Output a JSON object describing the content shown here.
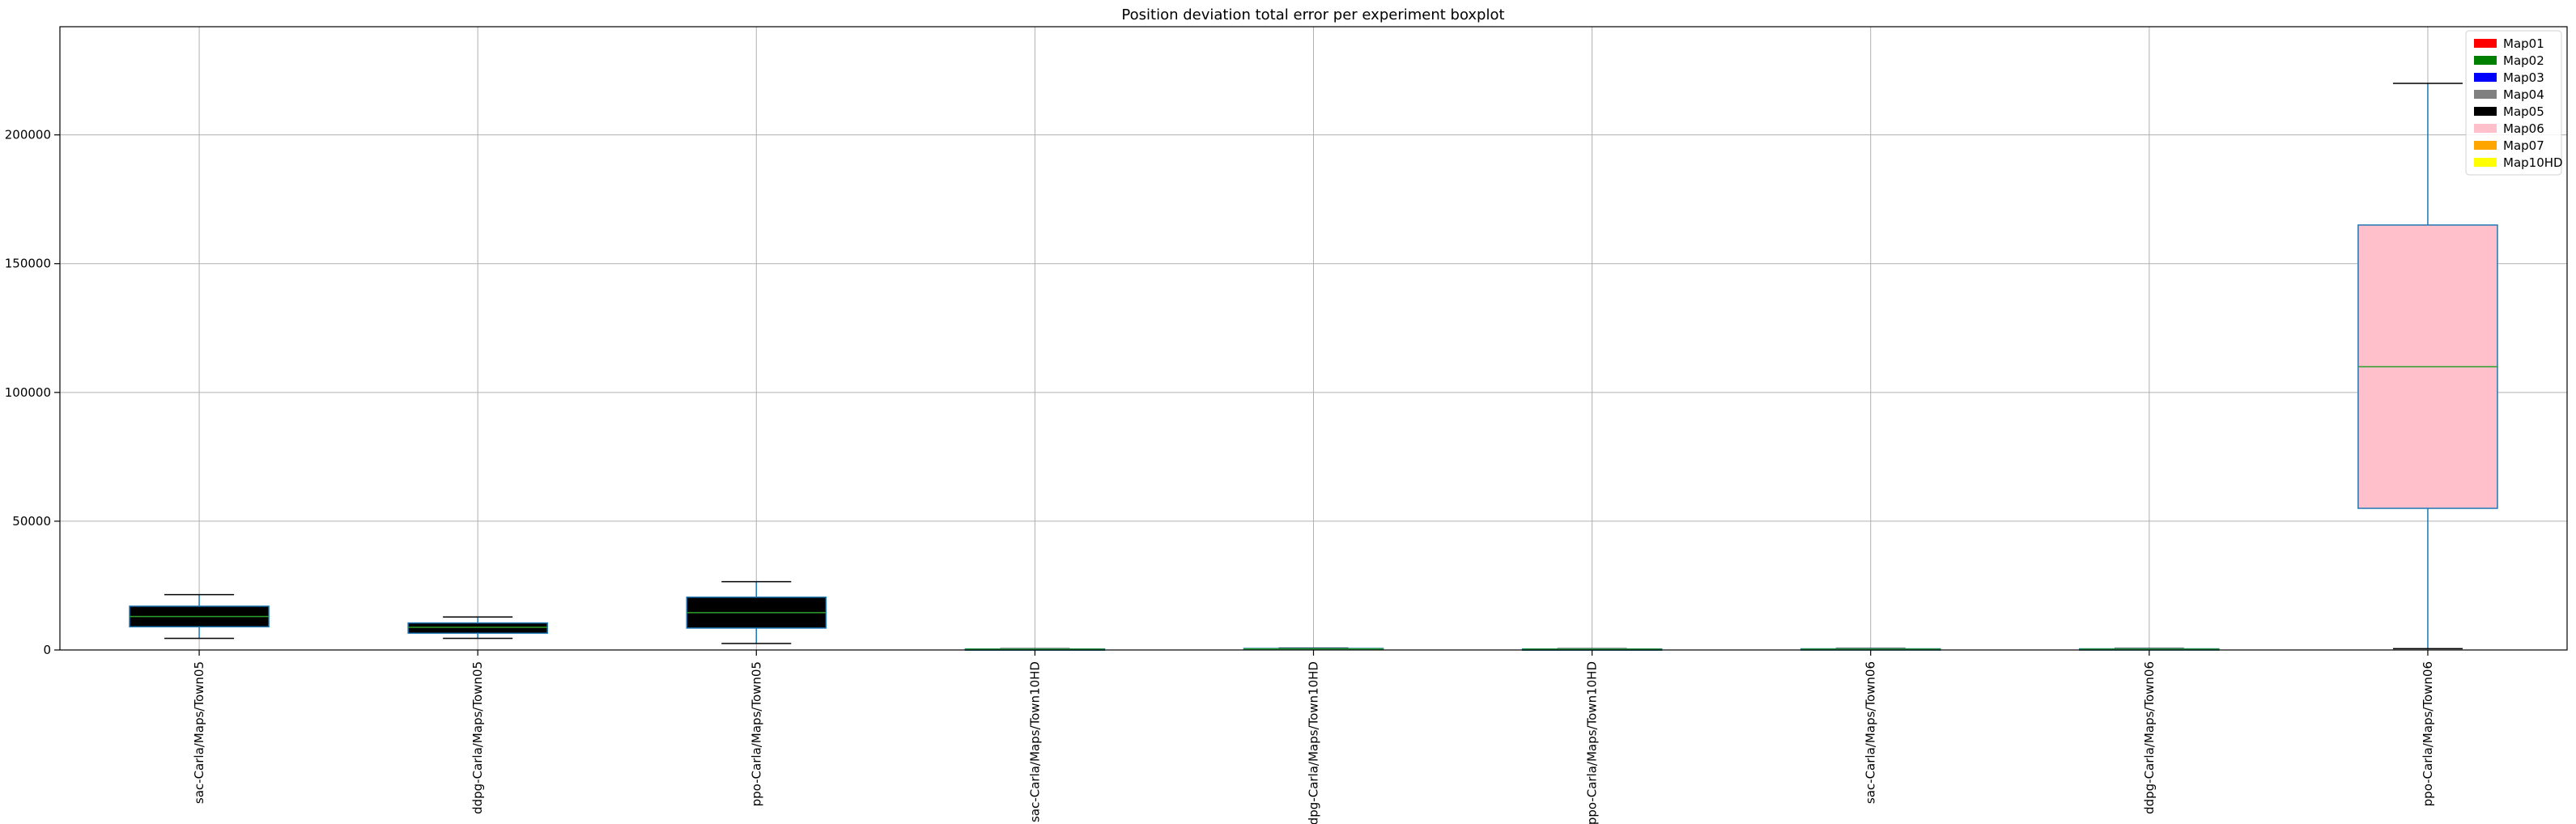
{
  "chart_data": {
    "type": "boxplot",
    "title": "Position deviation total error per experiment boxplot",
    "xlabel": "",
    "ylabel": "",
    "ylim": [
      0,
      242000
    ],
    "yticks": [
      0,
      50000,
      100000,
      150000,
      200000
    ],
    "grid": true,
    "legend": {
      "placement": "top-right",
      "entries": [
        {
          "label": "Map01",
          "color": "#ff0000"
        },
        {
          "label": "Map02",
          "color": "#008000"
        },
        {
          "label": "Map03",
          "color": "#0000ff"
        },
        {
          "label": "Map04",
          "color": "#808080"
        },
        {
          "label": "Map05",
          "color": "#000000"
        },
        {
          "label": "Map06",
          "color": "#ffc0cb"
        },
        {
          "label": "Map07",
          "color": "#ffa500"
        },
        {
          "label": "Map10HD",
          "color": "#ffff00"
        }
      ]
    },
    "categories": [
      "sac-Carla/Maps/Town05",
      "ddpg-Carla/Maps/Town05",
      "ppo-Carla/Maps/Town05",
      "sac-Carla/Maps/Town10HD",
      "ddpg-Carla/Maps/Town10HD",
      "ppo-Carla/Maps/Town10HD",
      "sac-Carla/Maps/Town06",
      "ddpg-Carla/Maps/Town06",
      "ppo-Carla/Maps/Town06"
    ],
    "boxes": [
      {
        "whislo": 4500,
        "q1": 9000,
        "med": 13000,
        "q3": 17000,
        "whishi": 21500,
        "fill": "#000000"
      },
      {
        "whislo": 4500,
        "q1": 6500,
        "med": 8800,
        "q3": 10500,
        "whishi": 12800,
        "fill": "#000000"
      },
      {
        "whislo": 2500,
        "q1": 8500,
        "med": 14500,
        "q3": 20500,
        "whishi": 26500,
        "fill": "#000000"
      },
      {
        "whislo": 100,
        "q1": 200,
        "med": 300,
        "q3": 400,
        "whishi": 500,
        "fill": "#000000"
      },
      {
        "whislo": 150,
        "q1": 300,
        "med": 450,
        "q3": 600,
        "whishi": 750,
        "fill": "#000000"
      },
      {
        "whislo": 100,
        "q1": 200,
        "med": 300,
        "q3": 400,
        "whishi": 500,
        "fill": "#000000"
      },
      {
        "whislo": 100,
        "q1": 200,
        "med": 300,
        "q3": 450,
        "whishi": 600,
        "fill": "#000000"
      },
      {
        "whislo": 100,
        "q1": 200,
        "med": 300,
        "q3": 450,
        "whishi": 600,
        "fill": "#000000"
      },
      {
        "whislo": 500,
        "q1": 55000,
        "med": 110000,
        "q3": 165000,
        "whishi": 220000,
        "fill": "#ffc0cb"
      }
    ],
    "colors": {
      "box_edge": "#1f77b4",
      "median": "#2ca02c",
      "grid": "#b0b0b0"
    }
  }
}
